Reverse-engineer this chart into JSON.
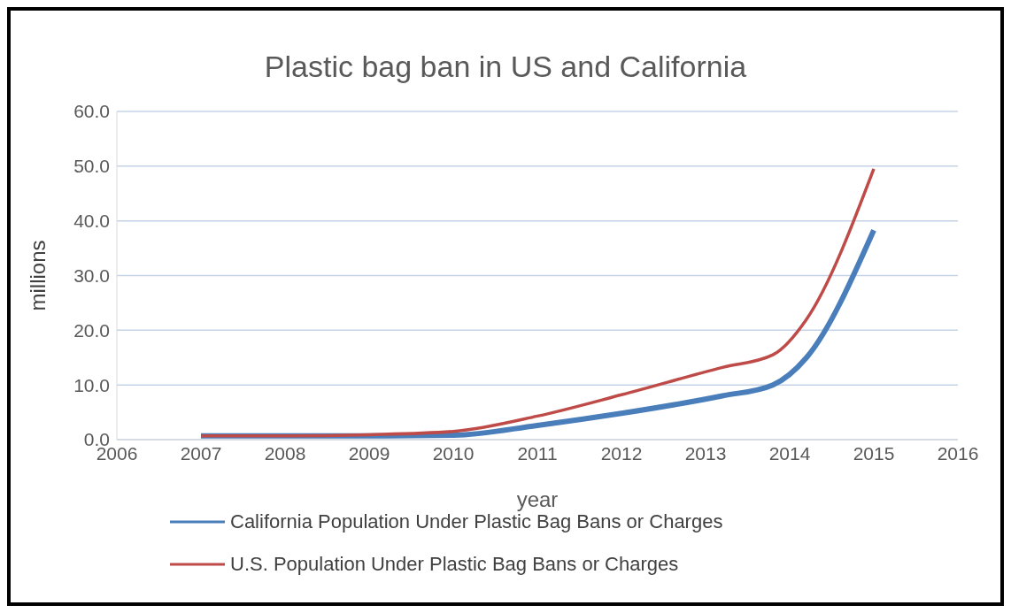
{
  "chart_data": {
    "type": "line",
    "title": "Plastic bag ban in US and California",
    "xlabel": "year",
    "ylabel": "millions",
    "x": [
      2007,
      2008,
      2009,
      2010,
      2011,
      2012,
      2013.2,
      2013.8,
      2014.2,
      2015
    ],
    "series": [
      {
        "name": "California Population Under Plastic Bag Bans or Charges",
        "color": "#4a7ebb",
        "values": [
          0.7,
          0.7,
          0.7,
          0.8,
          2.6,
          4.8,
          8.0,
          10.0,
          15.0,
          38.3
        ]
      },
      {
        "name": "U.S. Population Under Plastic Bag Bans or Charges",
        "color": "#be4b48",
        "values": [
          0.7,
          0.7,
          0.9,
          1.5,
          4.3,
          8.2,
          13.2,
          15.5,
          22.0,
          49.5
        ]
      }
    ],
    "xlim": [
      2006,
      2016
    ],
    "xticks": [
      2006,
      2007,
      2008,
      2009,
      2010,
      2011,
      2012,
      2013,
      2014,
      2015,
      2016
    ],
    "ylim": [
      0,
      60
    ],
    "yticks": [
      {
        "value": 0,
        "label": "0.0"
      },
      {
        "value": 10,
        "label": "10.0"
      },
      {
        "value": 20,
        "label": "20.0"
      },
      {
        "value": 30,
        "label": "30.0"
      },
      {
        "value": 40,
        "label": "40.0"
      },
      {
        "value": 50,
        "label": "50.0"
      },
      {
        "value": 60,
        "label": "60.0"
      }
    ],
    "grid": "y",
    "legend": "bottom",
    "marker": "none",
    "line_style": "solid"
  }
}
